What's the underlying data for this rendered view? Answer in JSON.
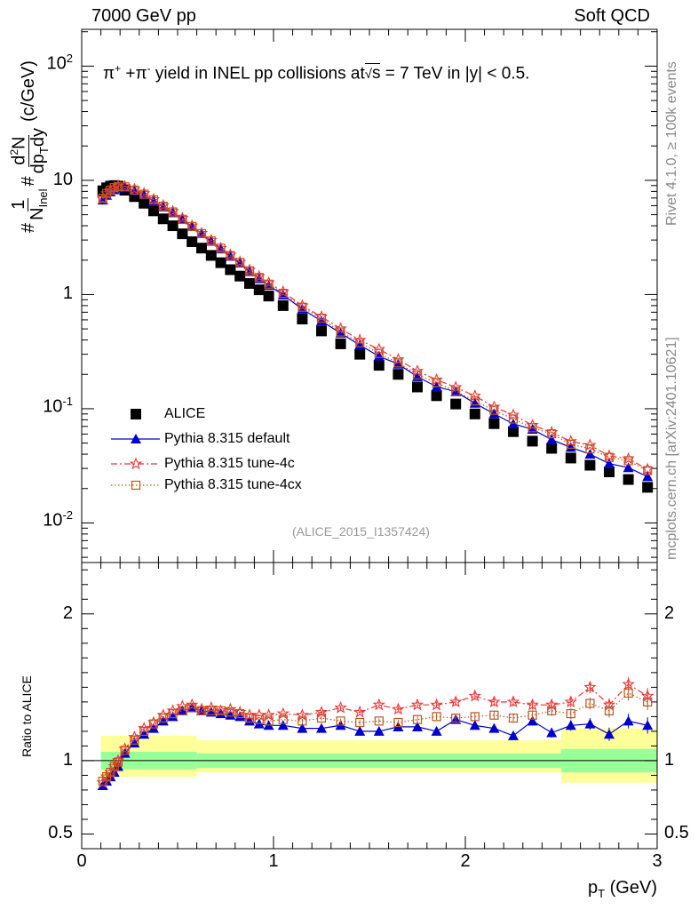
{
  "header": {
    "left": "7000 GeV pp",
    "right": "Soft QCD"
  },
  "side_labels": {
    "top": "Rivet 4.1.0, ≥ 100k events",
    "bottom": "mcplots.cern.ch [arXiv:2401.10621]"
  },
  "analysis_tag": "(ALICE_2015_I1357424)",
  "title_parts": {
    "a": "π",
    "b": "+",
    "c": " +π",
    "d": "-",
    "e": " yield in INEL pp collisions at",
    "f": "s",
    "g": " =  7 TeV in |y| < 0.5."
  },
  "y_label_parts": {
    "hash1": "#",
    "one": "1",
    "n": "N",
    "inel": "Inel",
    "hash2": "#",
    "num": "d",
    "num_sup": "2",
    "num_n": "N",
    "den": "dp",
    "den_sub": "T",
    "den_dy": "dy",
    "unit": "(c/GeV)"
  },
  "x_label_parts": {
    "p": "p",
    "sub": "T",
    "unit": " (GeV)"
  },
  "ratio_label": "Ratio to ALICE",
  "colors": {
    "data": "#000000",
    "default": "#0000cc",
    "tune4c": "#ee3333",
    "tune4cx": "#bb5522",
    "band_inner": "#99ff99",
    "band_outer": "#ffff99",
    "tag": "#999999"
  },
  "legend": [
    {
      "label": "ALICE",
      "series": "data"
    },
    {
      "label": "Pythia 8.315 default",
      "series": "default"
    },
    {
      "label": "Pythia 8.315 tune-4c",
      "series": "tune4c"
    },
    {
      "label": "Pythia 8.315 tune-4cx",
      "series": "tune4cx"
    }
  ],
  "chart_data": {
    "type": "scatter",
    "main": {
      "yscale": "log",
      "xlim": [
        0,
        3
      ],
      "ylim": [
        0.0045,
        210
      ],
      "ytick_labels": [
        {
          "value": 0.01,
          "base": "10",
          "exp": "-2"
        },
        {
          "value": 0.1,
          "base": "10",
          "exp": "-1"
        },
        {
          "value": 1,
          "base": "1",
          "exp": ""
        },
        {
          "value": 10,
          "base": "10",
          "exp": ""
        },
        {
          "value": 100,
          "base": "10",
          "exp": "2"
        }
      ]
    },
    "ratio": {
      "ylim": [
        0.4,
        2.35
      ],
      "ytick_labels": [
        {
          "value": 0.5,
          "label": "0.5"
        },
        {
          "value": 1,
          "label": "1"
        },
        {
          "value": 2,
          "label": "2"
        }
      ],
      "band_edges": [
        0.1,
        0.6,
        2.5,
        3.0
      ],
      "band_inner": [
        [
          0.94,
          1.06
        ],
        [
          0.95,
          1.05
        ],
        [
          0.92,
          1.08
        ]
      ],
      "band_outer": [
        [
          0.89,
          1.17
        ],
        [
          0.92,
          1.14
        ],
        [
          0.85,
          1.22
        ]
      ]
    },
    "xtick_labels": [
      {
        "value": 0,
        "label": "0"
      },
      {
        "value": 1,
        "label": "1"
      },
      {
        "value": 2,
        "label": "2"
      },
      {
        "value": 3,
        "label": "3"
      }
    ],
    "x": [
      0.1,
      0.12,
      0.14,
      0.16,
      0.18,
      0.2,
      0.25,
      0.3,
      0.35,
      0.4,
      0.45,
      0.5,
      0.55,
      0.6,
      0.65,
      0.7,
      0.75,
      0.8,
      0.85,
      0.9,
      0.95,
      1.0,
      1.1,
      1.2,
      1.3,
      1.4,
      1.5,
      1.6,
      1.7,
      1.8,
      1.9,
      2.0,
      2.1,
      2.2,
      2.3,
      2.4,
      2.5,
      2.6,
      2.7,
      2.8,
      2.9,
      3.0
    ],
    "x_centers": [
      0.11,
      0.13,
      0.15,
      0.17,
      0.19,
      0.225,
      0.275,
      0.325,
      0.375,
      0.425,
      0.475,
      0.525,
      0.575,
      0.625,
      0.675,
      0.725,
      0.775,
      0.825,
      0.875,
      0.925,
      0.975,
      1.05,
      1.15,
      1.25,
      1.35,
      1.45,
      1.55,
      1.65,
      1.75,
      1.85,
      1.95,
      2.05,
      2.15,
      2.25,
      2.35,
      2.45,
      2.55,
      2.65,
      2.75,
      2.85,
      2.95
    ],
    "series": [
      {
        "name": "ALICE",
        "key": "data",
        "values": [
          8.1,
          8.6,
          8.9,
          9.0,
          8.9,
          8.2,
          7.2,
          6.3,
          5.4,
          4.6,
          4.0,
          3.4,
          2.9,
          2.55,
          2.2,
          1.9,
          1.65,
          1.45,
          1.25,
          1.1,
          0.97,
          0.8,
          0.61,
          0.48,
          0.37,
          0.3,
          0.24,
          0.2,
          0.155,
          0.13,
          0.11,
          0.09,
          0.074,
          0.063,
          0.052,
          0.045,
          0.037,
          0.032,
          0.028,
          0.024,
          0.0205
        ]
      },
      {
        "name": "Pythia 8.315 default",
        "key": "default",
        "ratio": [
          0.83,
          0.86,
          0.89,
          0.92,
          0.96,
          1.05,
          1.12,
          1.18,
          1.22,
          1.27,
          1.3,
          1.34,
          1.36,
          1.34,
          1.33,
          1.32,
          1.31,
          1.3,
          1.27,
          1.25,
          1.24,
          1.24,
          1.22,
          1.22,
          1.24,
          1.2,
          1.2,
          1.23,
          1.23,
          1.2,
          1.28,
          1.24,
          1.22,
          1.17,
          1.27,
          1.19,
          1.24,
          1.25,
          1.18,
          1.27,
          1.24
        ],
        "ratio_err": [
          0.005,
          0.005,
          0.005,
          0.005,
          0.005,
          0.006,
          0.006,
          0.006,
          0.006,
          0.007,
          0.007,
          0.008,
          0.008,
          0.008,
          0.009,
          0.009,
          0.01,
          0.01,
          0.011,
          0.011,
          0.012,
          0.012,
          0.014,
          0.015,
          0.016,
          0.017,
          0.018,
          0.019,
          0.02,
          0.022,
          0.024,
          0.026,
          0.028,
          0.03,
          0.032,
          0.034,
          0.036,
          0.04,
          0.045,
          0.05,
          0.055
        ]
      },
      {
        "name": "Pythia 8.315 tune-4c",
        "key": "tune4c",
        "ratio": [
          0.85,
          0.89,
          0.92,
          0.96,
          1.0,
          1.08,
          1.16,
          1.22,
          1.26,
          1.31,
          1.34,
          1.37,
          1.38,
          1.35,
          1.36,
          1.34,
          1.35,
          1.33,
          1.31,
          1.31,
          1.31,
          1.32,
          1.31,
          1.33,
          1.36,
          1.33,
          1.38,
          1.35,
          1.38,
          1.38,
          1.4,
          1.44,
          1.4,
          1.4,
          1.38,
          1.38,
          1.4,
          1.5,
          1.38,
          1.52,
          1.44
        ],
        "ratio_err": [
          0.005,
          0.005,
          0.005,
          0.005,
          0.005,
          0.006,
          0.006,
          0.006,
          0.006,
          0.007,
          0.007,
          0.008,
          0.008,
          0.008,
          0.009,
          0.009,
          0.01,
          0.01,
          0.011,
          0.011,
          0.012,
          0.012,
          0.014,
          0.015,
          0.016,
          0.017,
          0.018,
          0.019,
          0.02,
          0.022,
          0.024,
          0.026,
          0.028,
          0.03,
          0.032,
          0.034,
          0.036,
          0.04,
          0.045,
          0.05,
          0.055
        ]
      },
      {
        "name": "Pythia 8.315 tune-4cx",
        "key": "tune4cx",
        "ratio": [
          0.86,
          0.89,
          0.92,
          0.96,
          0.99,
          1.07,
          1.14,
          1.2,
          1.25,
          1.29,
          1.32,
          1.34,
          1.36,
          1.34,
          1.34,
          1.34,
          1.33,
          1.32,
          1.29,
          1.28,
          1.27,
          1.28,
          1.27,
          1.29,
          1.27,
          1.26,
          1.27,
          1.26,
          1.28,
          1.3,
          1.29,
          1.3,
          1.31,
          1.29,
          1.31,
          1.34,
          1.32,
          1.39,
          1.34,
          1.46,
          1.4
        ],
        "ratio_err": [
          0.005,
          0.005,
          0.005,
          0.005,
          0.005,
          0.006,
          0.006,
          0.006,
          0.006,
          0.007,
          0.007,
          0.008,
          0.008,
          0.008,
          0.009,
          0.009,
          0.01,
          0.01,
          0.011,
          0.011,
          0.012,
          0.012,
          0.014,
          0.015,
          0.016,
          0.017,
          0.018,
          0.019,
          0.02,
          0.022,
          0.024,
          0.026,
          0.028,
          0.03,
          0.032,
          0.034,
          0.036,
          0.04,
          0.045,
          0.05,
          0.055
        ]
      }
    ]
  }
}
